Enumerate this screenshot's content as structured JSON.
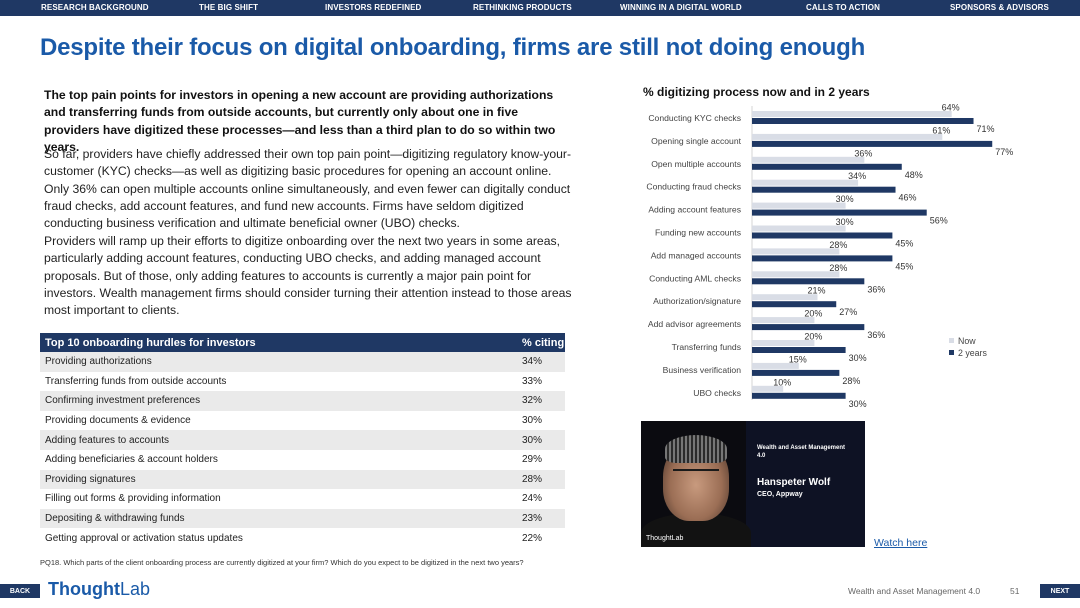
{
  "nav": {
    "items": [
      "RESEARCH BACKGROUND",
      "THE BIG SHIFT",
      "INVESTORS REDEFINED",
      "RETHINKING PRODUCTS",
      "WINNING IN A DIGITAL WORLD",
      "CALLS TO ACTION",
      "SPONSORS & ADVISORS"
    ]
  },
  "headline": "Despite their focus on digital onboarding, firms are still not doing enough",
  "intro": "The top pain points for investors in opening a new account are providing authorizations and transferring funds from outside accounts, but currently only about one in five providers have digitized these processes—and less than a third plan to do so within two years.",
  "para1": "So far, providers have chiefly addressed their own top pain point—digitizing regulatory know-your-customer (KYC) checks—as well as digitizing basic procedures for opening an account online. Only 36% can open multiple accounts online simultaneously, and even fewer can digitally conduct fraud checks, add account features, and fund new accounts. Firms have seldom digitized conducting business verification and ultimate beneficial owner (UBO) checks.",
  "para2": "Providers will ramp up their efforts to digitize onboarding over the next two years in some areas, particularly adding account features, conducting UBO checks, and adding managed account proposals. But of those, only adding features to  accounts is currently a major pain point for investors. Wealth management firms should consider turning their attention instead to those areas most important to clients.",
  "table": {
    "headers": [
      "Top 10 onboarding hurdles for investors",
      "% citing"
    ],
    "rows": [
      [
        "Providing authorizations",
        "34%"
      ],
      [
        "Transferring funds  from outside accounts",
        "33%"
      ],
      [
        "Confirming investment preferences",
        "32%"
      ],
      [
        "Providing documents & evidence",
        "30%"
      ],
      [
        "Adding features to accounts",
        "30%"
      ],
      [
        "Adding beneficiaries & account holders",
        "29%"
      ],
      [
        "Providing signatures",
        "28%"
      ],
      [
        "Filling out forms & providing information",
        "24%"
      ],
      [
        "Depositing & withdrawing funds",
        "23%"
      ],
      [
        "Getting approval or activation status updates",
        "22%"
      ]
    ]
  },
  "footnote": "PQ18. Which parts of the client onboarding process are currently digitized at your firm? Which do you expect to be digitized in the next two years?",
  "chart_data": {
    "type": "bar",
    "orientation": "horizontal",
    "title": "% digitizing process now and in 2 years",
    "categories": [
      "Conducting KYC checks",
      "Opening single account",
      "Open multiple accounts",
      "Conducting fraud checks",
      "Adding account features",
      "Funding new accounts",
      "Add managed accounts",
      "Conducting AML checks",
      "Authorization/signature",
      "Add advisor agreements",
      "Transferring funds",
      "Business verification",
      "UBO checks"
    ],
    "series": [
      {
        "name": "Now",
        "values": [
          64,
          61,
          36,
          34,
          30,
          30,
          28,
          28,
          21,
          20,
          20,
          15,
          10
        ],
        "color": "#d9dde6"
      },
      {
        "name": "2 years",
        "values": [
          71,
          77,
          48,
          46,
          56,
          45,
          45,
          36,
          27,
          36,
          30,
          28,
          30
        ],
        "color": "#1f3864"
      }
    ],
    "value_suffix": "%",
    "legend": "right",
    "grid": false
  },
  "video": {
    "series": "Wealth and Asset Management 4.0",
    "name": "Hanspeter Wolf",
    "role": "CEO, Appway",
    "logo": "ThoughtLab"
  },
  "watch_link": "Watch here",
  "bottom": {
    "back": "BACK",
    "next": "NEXT",
    "logo_a": "Thought",
    "logo_b": "Lab",
    "report": "Wealth and Asset Management 4.0",
    "page": "51"
  }
}
